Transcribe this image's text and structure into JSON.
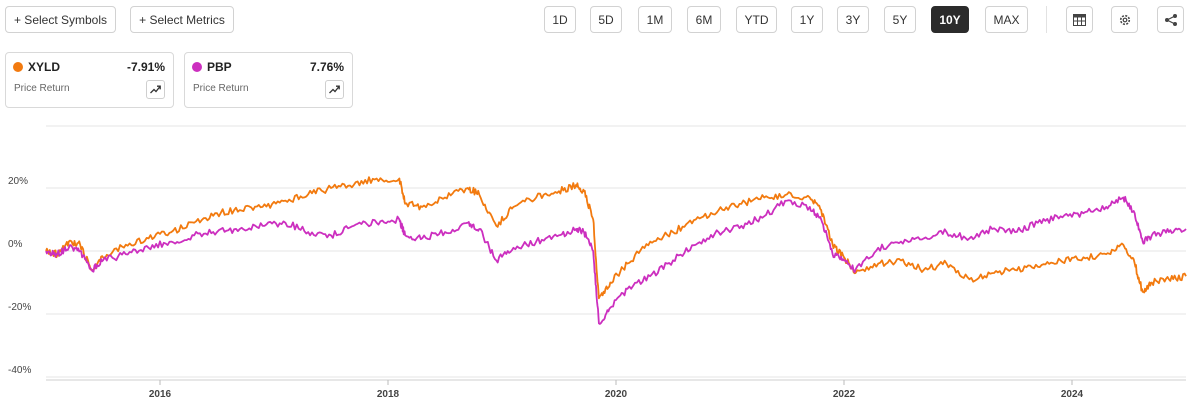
{
  "toolbar": {
    "select_symbols": "+ Select Symbols",
    "select_metrics": "+ Select Metrics",
    "ranges": [
      "1D",
      "5D",
      "1M",
      "6M",
      "YTD",
      "1Y",
      "3Y",
      "5Y",
      "10Y",
      "MAX"
    ],
    "active_range": "10Y",
    "icons": [
      "table-icon",
      "gear-icon",
      "share-icon"
    ]
  },
  "cards": [
    {
      "symbol": "XYLD",
      "change": "-7.91%",
      "metric": "Price Return",
      "color": "#f27a0f"
    },
    {
      "symbol": "PBP",
      "change": "7.76%",
      "metric": "Price Return",
      "color": "#cc2fbf"
    }
  ],
  "chart_data": {
    "type": "line",
    "x_ticks": [
      "2016",
      "2018",
      "2020",
      "2022",
      "2024"
    ],
    "y_ticks": [
      "20%",
      "0%",
      "-20%",
      "-40%"
    ],
    "y_tick_values": [
      20,
      0,
      -20,
      -40
    ],
    "ylim": [
      -40,
      40
    ],
    "xlim": [
      2015.0,
      2025.0
    ],
    "grid": true,
    "series": [
      {
        "name": "XYLD",
        "color": "#f27a0f",
        "points": [
          [
            2015.0,
            0
          ],
          [
            2015.1,
            -1
          ],
          [
            2015.2,
            3
          ],
          [
            2015.3,
            2
          ],
          [
            2015.4,
            -6
          ],
          [
            2015.5,
            -2
          ],
          [
            2015.7,
            2
          ],
          [
            2015.9,
            4
          ],
          [
            2016.1,
            6
          ],
          [
            2016.3,
            9
          ],
          [
            2016.5,
            12
          ],
          [
            2016.7,
            13
          ],
          [
            2016.9,
            14
          ],
          [
            2017.1,
            16
          ],
          [
            2017.3,
            18
          ],
          [
            2017.5,
            20
          ],
          [
            2017.7,
            21
          ],
          [
            2017.9,
            23
          ],
          [
            2018.1,
            23
          ],
          [
            2018.15,
            15
          ],
          [
            2018.3,
            14
          ],
          [
            2018.5,
            17
          ],
          [
            2018.7,
            20
          ],
          [
            2018.8,
            18
          ],
          [
            2018.95,
            8
          ],
          [
            2019.1,
            14
          ],
          [
            2019.3,
            17
          ],
          [
            2019.5,
            19
          ],
          [
            2019.65,
            21
          ],
          [
            2019.72,
            19
          ],
          [
            2019.8,
            10
          ],
          [
            2019.85,
            -15
          ],
          [
            2019.95,
            -10
          ],
          [
            2020.1,
            -4
          ],
          [
            2020.3,
            3
          ],
          [
            2020.5,
            6
          ],
          [
            2020.7,
            10
          ],
          [
            2020.9,
            13
          ],
          [
            2021.1,
            15
          ],
          [
            2021.3,
            17
          ],
          [
            2021.5,
            18
          ],
          [
            2021.7,
            17
          ],
          [
            2021.8,
            13
          ],
          [
            2021.9,
            2
          ],
          [
            2022.0,
            -2
          ],
          [
            2022.1,
            -7
          ],
          [
            2022.3,
            -4
          ],
          [
            2022.5,
            -3
          ],
          [
            2022.7,
            -6
          ],
          [
            2022.9,
            -4
          ],
          [
            2023.1,
            -9
          ],
          [
            2023.3,
            -7
          ],
          [
            2023.5,
            -6
          ],
          [
            2023.7,
            -5
          ],
          [
            2023.9,
            -3
          ],
          [
            2024.1,
            -2
          ],
          [
            2024.3,
            -1
          ],
          [
            2024.45,
            2
          ],
          [
            2024.55,
            -4
          ],
          [
            2024.62,
            -13
          ],
          [
            2024.7,
            -10
          ],
          [
            2024.85,
            -9
          ],
          [
            2025.0,
            -8
          ]
        ]
      },
      {
        "name": "PBP",
        "color": "#cc2fbf",
        "points": [
          [
            2015.0,
            0
          ],
          [
            2015.1,
            -1
          ],
          [
            2015.2,
            1
          ],
          [
            2015.3,
            0
          ],
          [
            2015.4,
            -6
          ],
          [
            2015.5,
            -3
          ],
          [
            2015.7,
            -1
          ],
          [
            2015.9,
            1
          ],
          [
            2016.1,
            3
          ],
          [
            2016.3,
            5
          ],
          [
            2016.5,
            6
          ],
          [
            2016.7,
            7
          ],
          [
            2016.9,
            8
          ],
          [
            2017.1,
            9
          ],
          [
            2017.3,
            6
          ],
          [
            2017.5,
            5
          ],
          [
            2017.7,
            8
          ],
          [
            2017.9,
            9
          ],
          [
            2018.1,
            10
          ],
          [
            2018.15,
            5
          ],
          [
            2018.3,
            4
          ],
          [
            2018.5,
            6
          ],
          [
            2018.7,
            9
          ],
          [
            2018.8,
            7
          ],
          [
            2018.95,
            -3
          ],
          [
            2019.1,
            1
          ],
          [
            2019.3,
            3
          ],
          [
            2019.5,
            5
          ],
          [
            2019.65,
            7
          ],
          [
            2019.72,
            6
          ],
          [
            2019.8,
            0
          ],
          [
            2019.85,
            -23
          ],
          [
            2019.95,
            -18
          ],
          [
            2020.1,
            -12
          ],
          [
            2020.3,
            -8
          ],
          [
            2020.5,
            -3
          ],
          [
            2020.7,
            2
          ],
          [
            2020.9,
            6
          ],
          [
            2021.1,
            8
          ],
          [
            2021.3,
            11
          ],
          [
            2021.5,
            16
          ],
          [
            2021.7,
            14
          ],
          [
            2021.8,
            10
          ],
          [
            2021.9,
            -1
          ],
          [
            2022.0,
            -3
          ],
          [
            2022.1,
            -6
          ],
          [
            2022.3,
            1
          ],
          [
            2022.5,
            3
          ],
          [
            2022.7,
            4
          ],
          [
            2022.9,
            6
          ],
          [
            2023.1,
            4
          ],
          [
            2023.3,
            7
          ],
          [
            2023.5,
            6
          ],
          [
            2023.7,
            9
          ],
          [
            2023.9,
            11
          ],
          [
            2024.1,
            12
          ],
          [
            2024.3,
            14
          ],
          [
            2024.45,
            17
          ],
          [
            2024.55,
            12
          ],
          [
            2024.62,
            3
          ],
          [
            2024.7,
            5
          ],
          [
            2024.85,
            6
          ],
          [
            2025.0,
            7
          ]
        ]
      }
    ]
  }
}
